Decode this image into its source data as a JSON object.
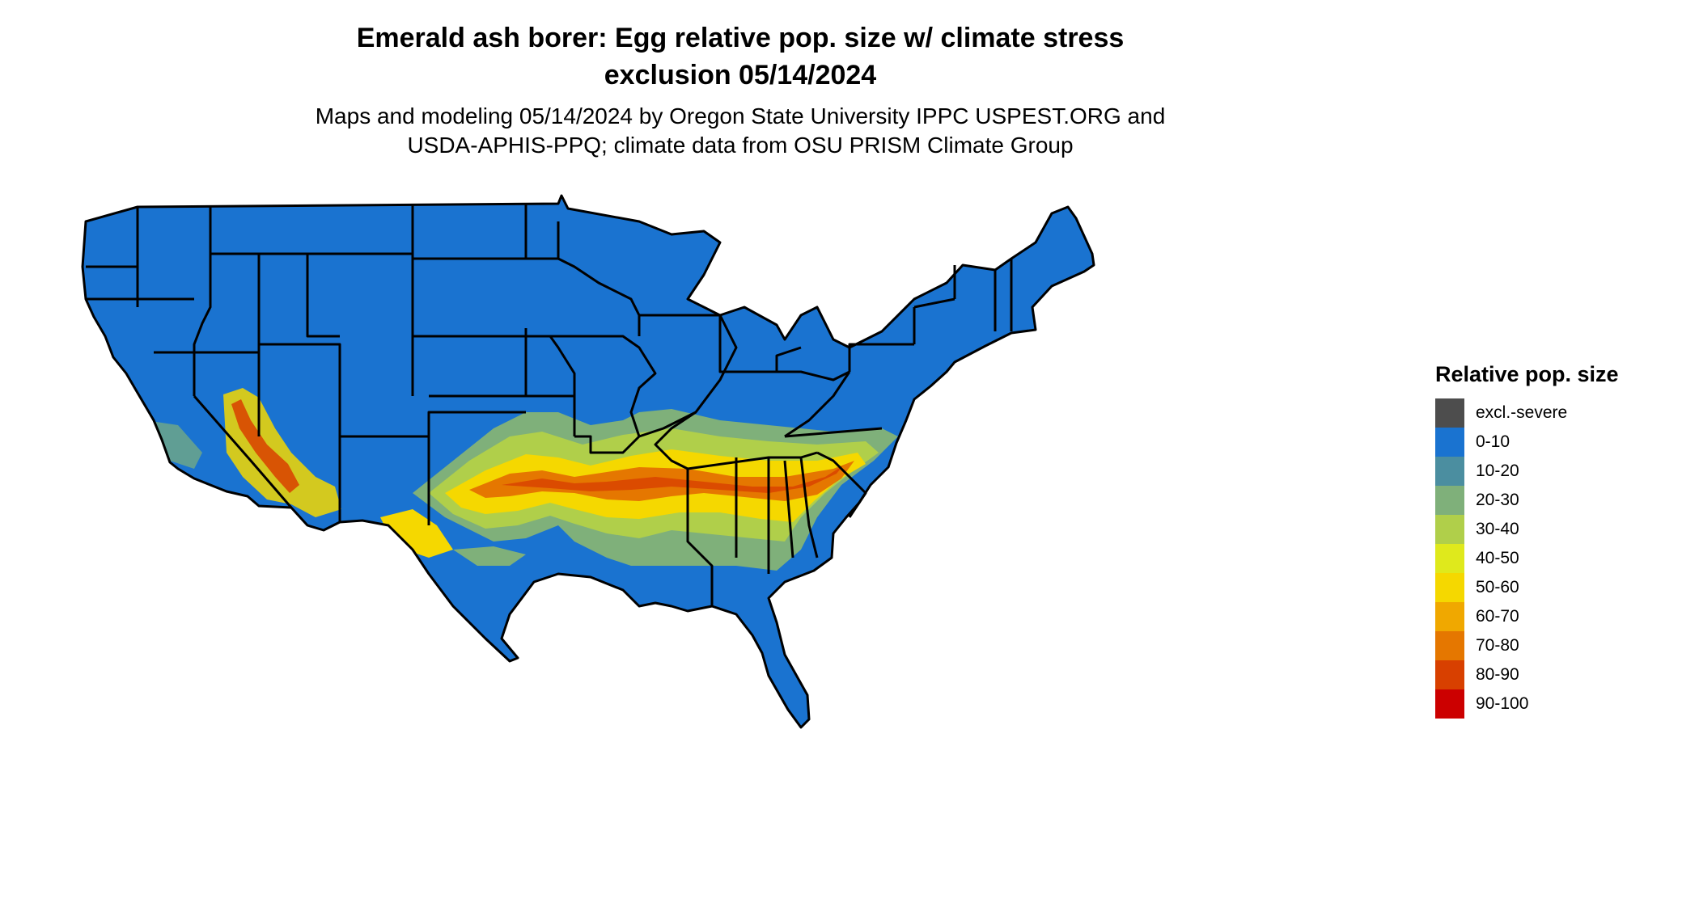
{
  "title_line1": "Emerald ash borer: Egg relative pop. size w/ climate stress",
  "title_line2": "exclusion 05/14/2024",
  "subtitle_line1": "Maps and modeling 05/14/2024 by Oregon State University IPPC USPEST.ORG and",
  "subtitle_line2": "USDA-APHIS-PPQ; climate data from OSU PRISM Climate Group",
  "legend": {
    "title": "Relative pop. size",
    "items": [
      {
        "label": "excl.-severe",
        "color": "#4d4d4d"
      },
      {
        "label": "0-10",
        "color": "#1a73d0"
      },
      {
        "label": "10-20",
        "color": "#4b8ea0"
      },
      {
        "label": "20-30",
        "color": "#7fb07a"
      },
      {
        "label": "30-40",
        "color": "#b0cf4a"
      },
      {
        "label": "40-50",
        "color": "#dfe91c"
      },
      {
        "label": "50-60",
        "color": "#f5d800"
      },
      {
        "label": "60-70",
        "color": "#f0a800"
      },
      {
        "label": "70-80",
        "color": "#e57700"
      },
      {
        "label": "80-90",
        "color": "#d84000"
      },
      {
        "label": "90-100",
        "color": "#cc0000"
      }
    ]
  },
  "map": {
    "base_color": "#1a73d0",
    "border_color": "#000000",
    "pattern_note_zones": [
      "southeast-band",
      "southwest-desert",
      "texas-band"
    ]
  }
}
